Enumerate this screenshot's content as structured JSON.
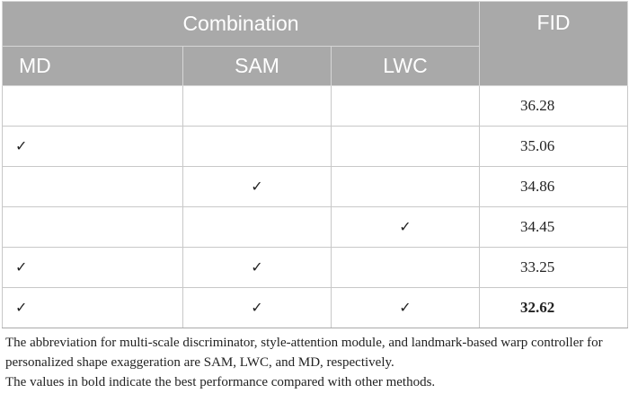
{
  "header": {
    "group_label": "Combination",
    "fid_label": "FID",
    "columns": [
      "MD",
      "SAM",
      "LWC"
    ]
  },
  "check_symbol": "✓",
  "rows": [
    {
      "md": "",
      "sam": "",
      "lwc": "",
      "fid": "36.28"
    },
    {
      "md": "✓",
      "sam": "",
      "lwc": "",
      "fid": "35.06"
    },
    {
      "md": "",
      "sam": "✓",
      "lwc": "",
      "fid": "34.86"
    },
    {
      "md": "",
      "sam": "",
      "lwc": "✓",
      "fid": "34.45"
    },
    {
      "md": "✓",
      "sam": "✓",
      "lwc": "",
      "fid": "33.25"
    },
    {
      "md": "✓",
      "sam": "✓",
      "lwc": "✓",
      "fid": "32.62"
    }
  ],
  "best_row_index": 5,
  "caption": {
    "line1": "The abbreviation for multi-scale discriminator, style-attention module, and landmark-based warp controller for personalized shape exaggeration are SAM, LWC, and MD, respectively.",
    "line2": "The values in bold indicate the best performance compared with other methods."
  },
  "colors": {
    "header_bg": "#a9a9a9",
    "header_text": "#ffffff",
    "border": "#c8c8c8"
  }
}
